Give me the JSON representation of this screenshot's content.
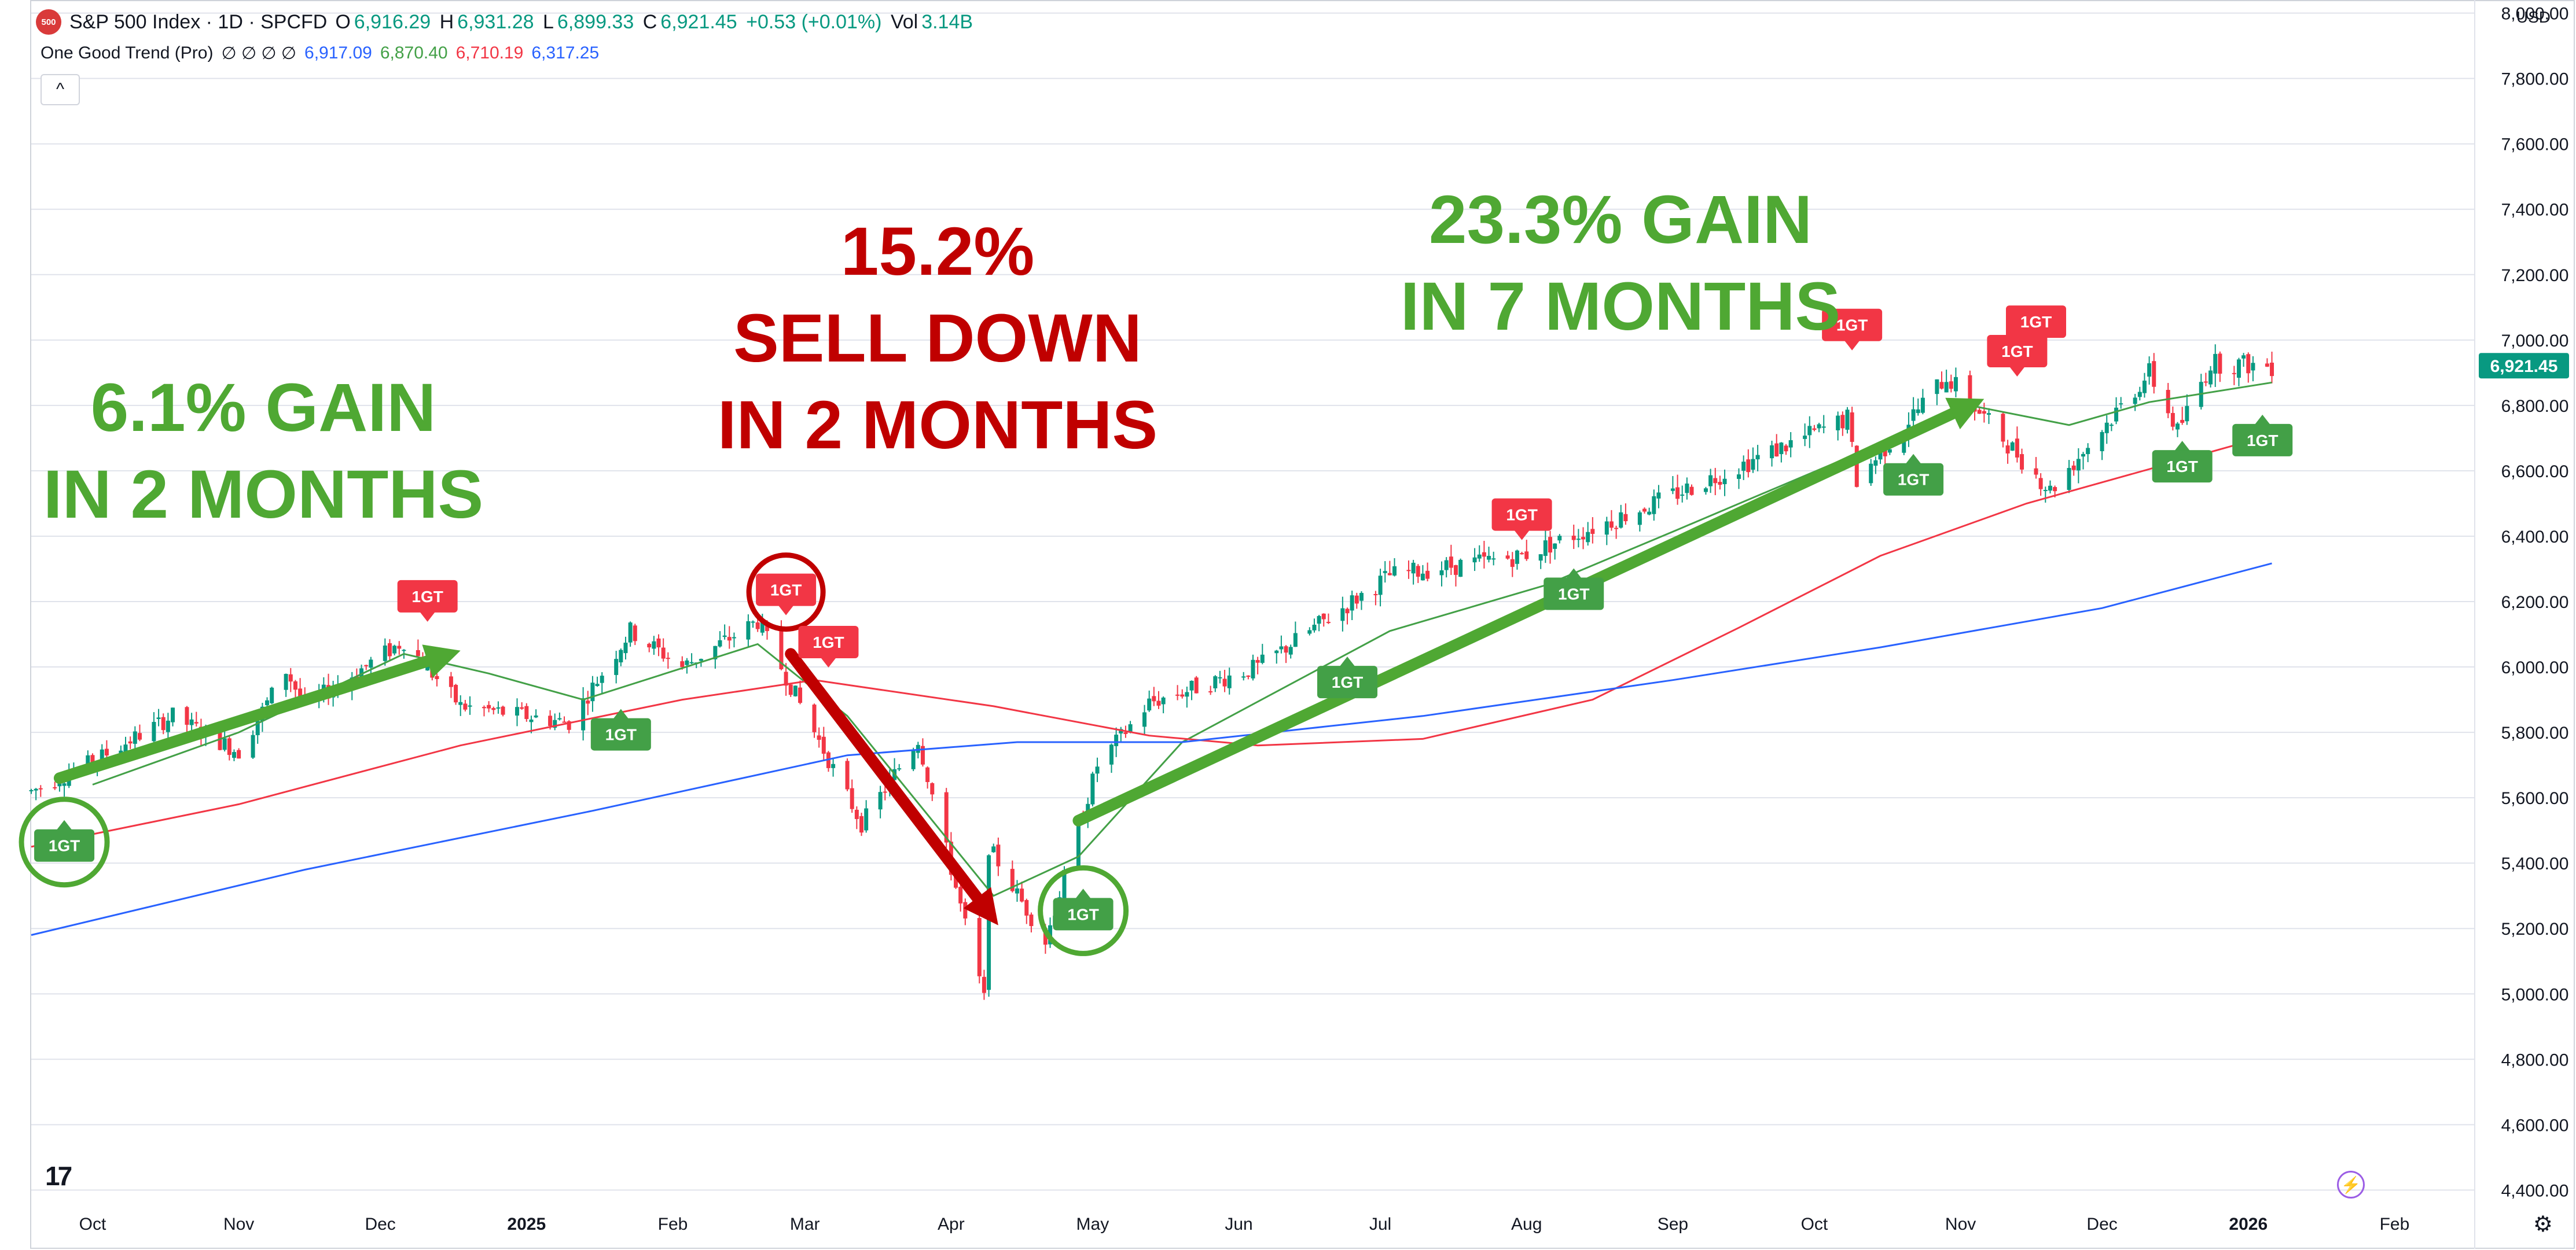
{
  "header": {
    "symbol_badge": "500",
    "title": "S&P 500 Index · 1D · SPCFD",
    "ohlc": [
      {
        "k": "O",
        "v": "6,916.29"
      },
      {
        "k": "H",
        "v": "6,931.28"
      },
      {
        "k": "L",
        "v": "6,899.33"
      },
      {
        "k": "C",
        "v": "6,921.45"
      }
    ],
    "change": "+0.53 (+0.01%)",
    "volume_label": "Vol",
    "volume": "3.14B"
  },
  "indicator": {
    "name": "One Good Trend (Pro)",
    "params": "∅ ∅ ∅ ∅",
    "values": [
      {
        "v": "6,917.09",
        "color": "#2962ff"
      },
      {
        "v": "6,870.40",
        "color": "#43a047"
      },
      {
        "v": "6,710.19",
        "color": "#f23645"
      },
      {
        "v": "6,317.25",
        "color": "#2962ff"
      }
    ],
    "collapse_glyph": "^"
  },
  "currency": "USD",
  "logo_text": "17",
  "chart_data": {
    "type": "candlestick",
    "symbol": "S&P 500 Index",
    "interval": "1D",
    "ylim": [
      4360,
      8040
    ],
    "y_ticks": [
      4400,
      4600,
      4800,
      5000,
      5200,
      5400,
      5600,
      5800,
      6000,
      6200,
      6400,
      6600,
      6800,
      7000,
      7200,
      7400,
      7600,
      7800,
      8000
    ],
    "y_tick_labels": [
      "4,400.00",
      "4,600.00",
      "4,800.00",
      "5,000.00",
      "5,200.00",
      "5,400.00",
      "5,600.00",
      "5,800.00",
      "6,000.00",
      "6,200.00",
      "6,400.00",
      "6,600.00",
      "6,800.00",
      "7,000.00",
      "7,200.00",
      "7,400.00",
      "7,600.00",
      "7,800.00",
      "8,000.00"
    ],
    "last_price_label": "6,921.45",
    "last_price": 6921.45,
    "x_range": [
      "2024-09-18",
      "2026-02-18"
    ],
    "x_ticks": [
      {
        "label": "Oct",
        "date": "2024-10-01"
      },
      {
        "label": "Nov",
        "date": "2024-11-01"
      },
      {
        "label": "Dec",
        "date": "2024-12-01"
      },
      {
        "label": "2025",
        "date": "2025-01-01",
        "bold": true
      },
      {
        "label": "Feb",
        "date": "2025-02-01"
      },
      {
        "label": "Mar",
        "date": "2025-03-01"
      },
      {
        "label": "Apr",
        "date": "2025-04-01"
      },
      {
        "label": "May",
        "date": "2025-05-01"
      },
      {
        "label": "Jun",
        "date": "2025-06-01"
      },
      {
        "label": "Jul",
        "date": "2025-07-01"
      },
      {
        "label": "Aug",
        "date": "2025-08-01"
      },
      {
        "label": "Sep",
        "date": "2025-09-01"
      },
      {
        "label": "Oct",
        "date": "2025-10-01"
      },
      {
        "label": "Nov",
        "date": "2025-11-01"
      },
      {
        "label": "Dec",
        "date": "2025-12-01"
      },
      {
        "label": "2026",
        "date": "2026-01-01",
        "bold": true
      },
      {
        "label": "Feb",
        "date": "2026-02-01"
      }
    ],
    "price_path": [
      [
        "2024-09-18",
        5620
      ],
      [
        "2024-10-01",
        5710
      ],
      [
        "2024-10-18",
        5850
      ],
      [
        "2024-11-01",
        5740
      ],
      [
        "2024-11-11",
        5990
      ],
      [
        "2024-11-15",
        5880
      ],
      [
        "2024-12-06",
        6080
      ],
      [
        "2024-12-18",
        5880
      ],
      [
        "2025-01-10",
        5830
      ],
      [
        "2025-01-23",
        6110
      ],
      [
        "2025-02-03",
        6000
      ],
      [
        "2025-02-19",
        6140
      ],
      [
        "2025-03-13",
        5520
      ],
      [
        "2025-03-25",
        5780
      ],
      [
        "2025-04-08",
        4985
      ],
      [
        "2025-04-09",
        5450
      ],
      [
        "2025-04-21",
        5160
      ],
      [
        "2025-05-02",
        5700
      ],
      [
        "2025-05-13",
        5890
      ],
      [
        "2025-06-05",
        6000
      ],
      [
        "2025-07-03",
        6280
      ],
      [
        "2025-07-31",
        6340
      ],
      [
        "2025-08-28",
        6500
      ],
      [
        "2025-10-08",
        6760
      ],
      [
        "2025-10-10",
        6570
      ],
      [
        "2025-10-29",
        6890
      ],
      [
        "2025-11-20",
        6540
      ],
      [
        "2025-12-11",
        6900
      ],
      [
        "2025-12-17",
        6720
      ],
      [
        "2025-12-24",
        6930
      ],
      [
        "2026-01-06",
        6921
      ]
    ],
    "series": [
      {
        "color": "#43a047",
        "points": [
          [
            "2024-10-01",
            5640
          ],
          [
            "2024-11-01",
            5800
          ],
          [
            "2024-12-06",
            6040
          ],
          [
            "2024-12-24",
            5980
          ],
          [
            "2025-01-13",
            5900
          ],
          [
            "2025-02-19",
            6070
          ],
          [
            "2025-03-10",
            5850
          ],
          [
            "2025-04-10",
            5300
          ],
          [
            "2025-04-28",
            5420
          ],
          [
            "2025-05-20",
            5770
          ],
          [
            "2025-07-03",
            6110
          ],
          [
            "2025-08-05",
            6250
          ],
          [
            "2025-09-02",
            6420
          ],
          [
            "2025-10-08",
            6640
          ],
          [
            "2025-11-03",
            6800
          ],
          [
            "2025-11-24",
            6740
          ],
          [
            "2025-12-11",
            6810
          ],
          [
            "2026-01-06",
            6870
          ]
        ]
      },
      {
        "color": "#f23645",
        "points": [
          [
            "2024-09-18",
            5450
          ],
          [
            "2024-11-01",
            5580
          ],
          [
            "2024-12-18",
            5760
          ],
          [
            "2025-02-03",
            5900
          ],
          [
            "2025-03-03",
            5960
          ],
          [
            "2025-04-10",
            5880
          ],
          [
            "2025-05-13",
            5790
          ],
          [
            "2025-06-05",
            5760
          ],
          [
            "2025-07-10",
            5780
          ],
          [
            "2025-08-15",
            5900
          ],
          [
            "2025-09-15",
            6120
          ],
          [
            "2025-10-15",
            6340
          ],
          [
            "2025-11-15",
            6500
          ],
          [
            "2026-01-06",
            6710
          ]
        ]
      },
      {
        "color": "#2962ff",
        "points": [
          [
            "2024-09-18",
            5180
          ],
          [
            "2024-11-15",
            5380
          ],
          [
            "2025-01-15",
            5560
          ],
          [
            "2025-03-10",
            5730
          ],
          [
            "2025-04-15",
            5770
          ],
          [
            "2025-05-20",
            5770
          ],
          [
            "2025-07-10",
            5850
          ],
          [
            "2025-09-01",
            5960
          ],
          [
            "2025-10-15",
            6060
          ],
          [
            "2025-12-01",
            6180
          ],
          [
            "2026-01-06",
            6317
          ]
        ]
      }
    ],
    "signals": [
      {
        "date": "2024-09-25",
        "price": 5560,
        "side": "buy",
        "label": "1GT",
        "circled": true
      },
      {
        "date": "2024-12-11",
        "price": 6110,
        "side": "sell",
        "label": "1GT"
      },
      {
        "date": "2025-01-21",
        "price": 5900,
        "side": "buy",
        "label": "1GT"
      },
      {
        "date": "2025-02-25",
        "price": 6130,
        "side": "sell",
        "label": "1GT",
        "circled": true
      },
      {
        "date": "2025-03-06",
        "price": 5970,
        "side": "sell",
        "label": "1GT"
      },
      {
        "date": "2025-04-29",
        "price": 5350,
        "side": "buy",
        "label": "1GT",
        "circled": true
      },
      {
        "date": "2025-06-24",
        "price": 6060,
        "side": "buy",
        "label": "1GT"
      },
      {
        "date": "2025-07-31",
        "price": 6360,
        "side": "sell",
        "label": "1GT"
      },
      {
        "date": "2025-08-11",
        "price": 6330,
        "side": "buy",
        "label": "1GT"
      },
      {
        "date": "2025-10-09",
        "price": 6940,
        "side": "sell",
        "label": "1GT"
      },
      {
        "date": "2025-10-22",
        "price": 6680,
        "side": "buy",
        "label": "1GT"
      },
      {
        "date": "2025-11-13",
        "price": 6860,
        "side": "sell",
        "label": "1GT"
      },
      {
        "date": "2025-11-17",
        "price": 6950,
        "side": "sell",
        "label": "1GT"
      },
      {
        "date": "2025-12-18",
        "price": 6720,
        "side": "buy",
        "label": "1GT"
      },
      {
        "date": "2026-01-04",
        "price": 6800,
        "side": "buy",
        "label": "1GT"
      }
    ],
    "annotations": [
      {
        "lines": [
          "6.1% GAIN",
          "IN 2 MONTHS"
        ],
        "color": "#4fa833"
      },
      {
        "lines": [
          "15.2%",
          "SELL DOWN",
          "IN 2 MONTHS"
        ],
        "color": "#c00000"
      },
      {
        "lines": [
          "23.3% GAIN",
          "IN 7 MONTHS"
        ],
        "color": "#4fa833"
      }
    ],
    "trend_arrows": [
      {
        "color": "#4fa833",
        "from": [
          "2024-09-24",
          5660
        ],
        "to": [
          "2024-12-18",
          6050
        ]
      },
      {
        "color": "#c00000",
        "from": [
          "2025-02-26",
          6040
        ],
        "to": [
          "2025-04-11",
          5210
        ]
      },
      {
        "color": "#4fa833",
        "from": [
          "2025-04-28",
          5530
        ],
        "to": [
          "2025-11-06",
          6820
        ]
      }
    ]
  }
}
